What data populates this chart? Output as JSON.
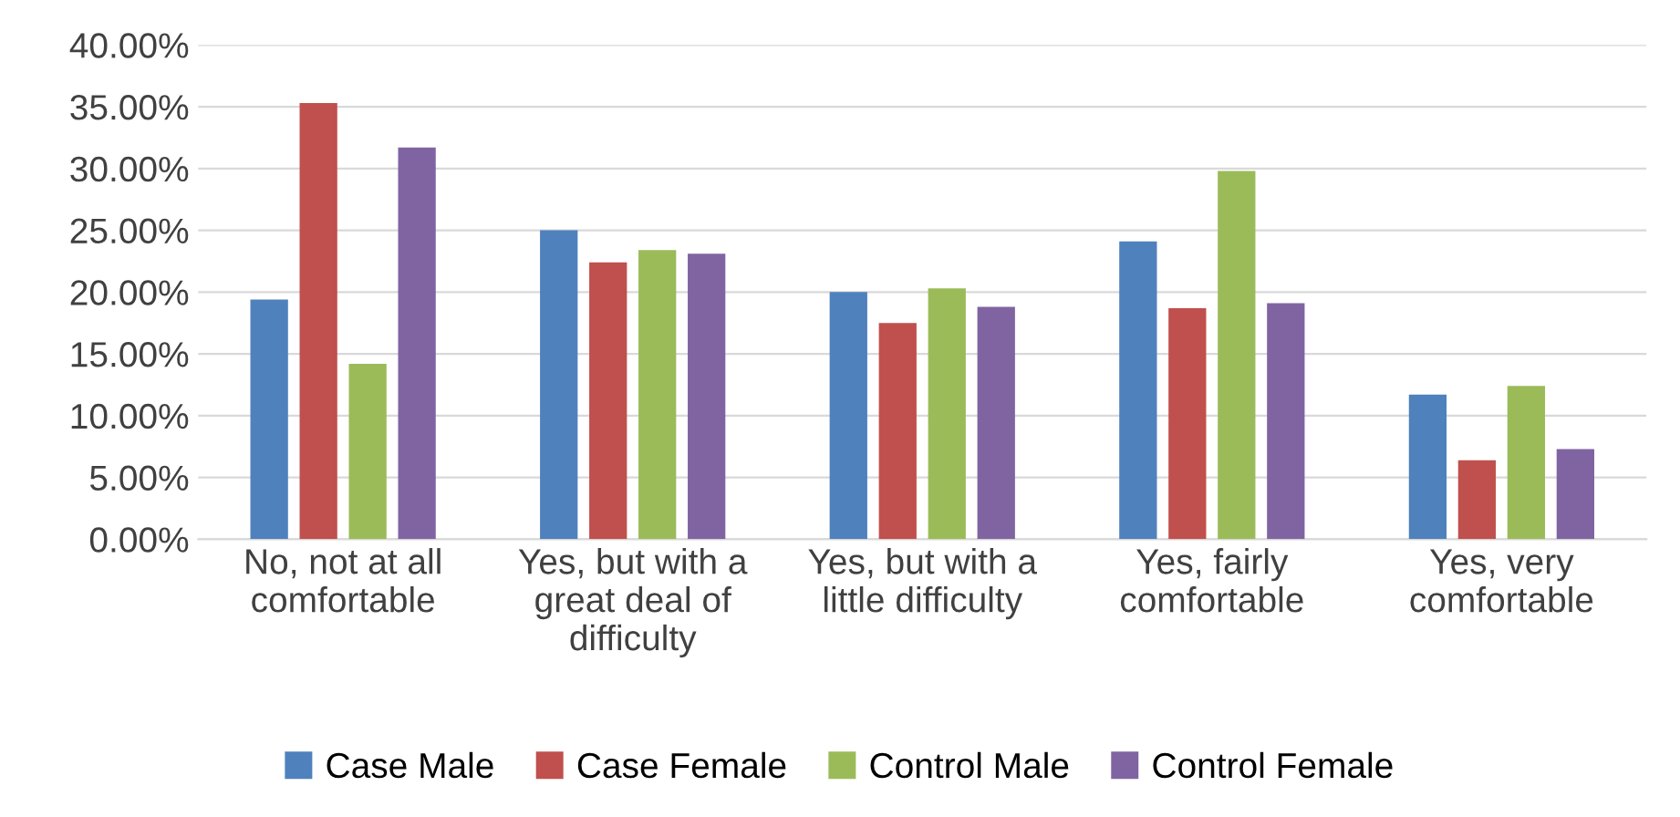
{
  "chart_data": {
    "type": "bar",
    "categories": [
      "No, not at all\ncomfortable",
      "Yes, but with a\ngreat deal of\ndifficulty",
      "Yes, but with a\nlittle difficulty",
      "Yes, fairly\ncomfortable",
      "Yes, very\ncomfortable"
    ],
    "series": [
      {
        "name": "Case Male",
        "color": "#4f81bd",
        "values": [
          19.4,
          25.0,
          20.0,
          24.1,
          11.7
        ]
      },
      {
        "name": "Case Female",
        "color": "#c0504d",
        "values": [
          35.3,
          22.4,
          17.5,
          18.7,
          6.4
        ]
      },
      {
        "name": "Control Male",
        "color": "#9bbb59",
        "values": [
          14.2,
          23.4,
          20.3,
          29.8,
          12.4
        ]
      },
      {
        "name": "Control Female",
        "color": "#8064a2",
        "values": [
          31.7,
          23.1,
          18.8,
          19.1,
          7.3
        ]
      }
    ],
    "ylim": [
      0,
      40
    ],
    "yticks": [
      {
        "value": 0,
        "label": "0.00%"
      },
      {
        "value": 5,
        "label": "5.00%"
      },
      {
        "value": 10,
        "label": "10.00%"
      },
      {
        "value": 15,
        "label": "15.00%"
      },
      {
        "value": 20,
        "label": "20.00%"
      },
      {
        "value": 25,
        "label": "25.00%"
      },
      {
        "value": 30,
        "label": "30.00%"
      },
      {
        "value": 35,
        "label": "35.00%"
      },
      {
        "value": 40,
        "label": "40.00%"
      }
    ],
    "grid": "y",
    "legend": "bottom"
  }
}
